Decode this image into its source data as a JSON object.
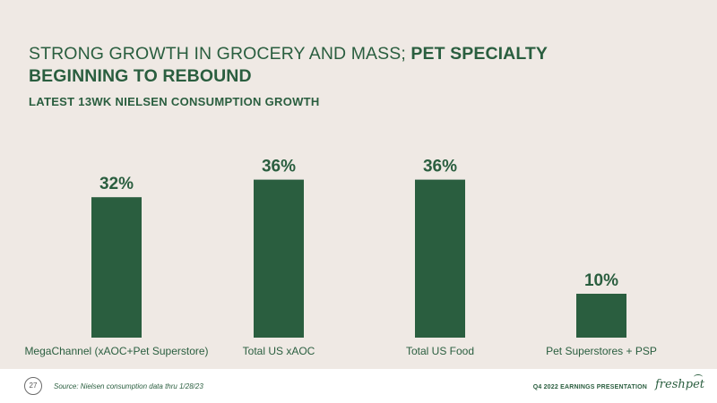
{
  "slide": {
    "title_normal": "STRONG GROWTH IN GROCERY AND MASS; ",
    "title_bold": "PET SPECIALTY BEGINNING TO REBOUND",
    "subtitle": "LATEST 13WK NIELSEN CONSUMPTION GROWTH"
  },
  "footer": {
    "page_number": "27",
    "source": "Source:  Nielsen consumption data thru 1/28/23",
    "presentation": "Q4 2022 EARNINGS PRESENTATION",
    "logo_text": "freshpet"
  },
  "colors": {
    "bar": "#2a5e3f",
    "text": "#2a5e3f",
    "background": "#efe9e4"
  },
  "chart_data": {
    "type": "bar",
    "categories": [
      "MegaChannel (xAOC+Pet Superstore)",
      "Total US xAOC",
      "Total US Food",
      "Pet Superstores + PSP"
    ],
    "values": [
      32,
      36,
      36,
      10
    ],
    "data_labels": [
      "32%",
      "36%",
      "36%",
      "10%"
    ],
    "title": "LATEST 13WK NIELSEN CONSUMPTION GROWTH",
    "xlabel": "",
    "ylabel": "",
    "ylim": [
      0,
      40
    ],
    "grid": false,
    "legend": "none"
  }
}
